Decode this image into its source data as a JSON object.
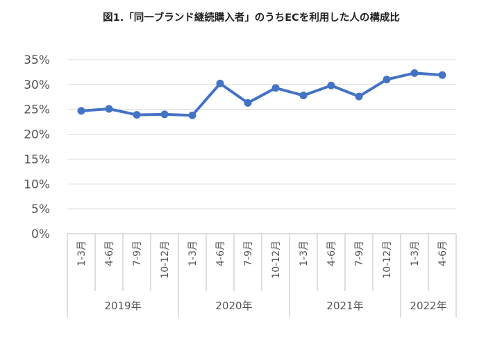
{
  "chart_data": {
    "type": "line",
    "title": "図1.「同一ブランド継続購入者」のうちECを利用した人の構成比",
    "y_ticks": [
      "0%",
      "5%",
      "10%",
      "15%",
      "20%",
      "25%",
      "30%",
      "35%"
    ],
    "ylim": [
      0,
      35
    ],
    "grid": true,
    "legend": "none",
    "color": "#4472C4",
    "categories": [
      "1-3月",
      "4-6月",
      "7-9月",
      "10-12月",
      "1-3月",
      "4-6月",
      "7-9月",
      "10-12月",
      "1-3月",
      "4-6月",
      "7-9月",
      "10-12月",
      "1-3月",
      "4-6月"
    ],
    "groups": [
      {
        "label": "2019年",
        "count": 4
      },
      {
        "label": "2020年",
        "count": 4
      },
      {
        "label": "2021年",
        "count": 4
      },
      {
        "label": "2022年",
        "count": 2
      }
    ],
    "series": [
      {
        "values": [
          24.7,
          25.1,
          23.9,
          24.0,
          23.8,
          30.2,
          26.3,
          29.3,
          27.8,
          29.8,
          27.6,
          31.0,
          32.3,
          31.9
        ]
      }
    ]
  }
}
